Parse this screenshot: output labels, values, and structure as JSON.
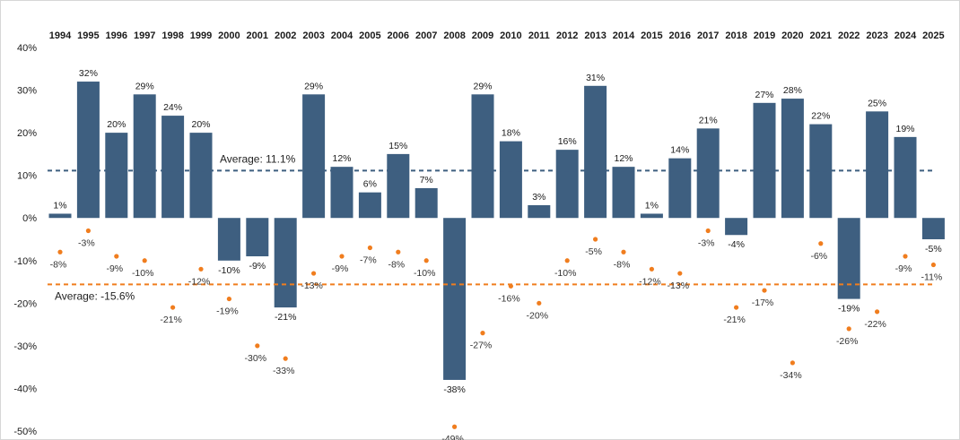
{
  "chart_data": {
    "type": "bar",
    "categories": [
      "1994",
      "1995",
      "1996",
      "1997",
      "1998",
      "1999",
      "2000",
      "2001",
      "2002",
      "2003",
      "2004",
      "2005",
      "2006",
      "2007",
      "2008",
      "2009",
      "2010",
      "2011",
      "2012",
      "2013",
      "2014",
      "2015",
      "2016",
      "2017",
      "2018",
      "2019",
      "2020",
      "2021",
      "2022",
      "2023",
      "2024",
      "2025"
    ],
    "series": [
      {
        "kind": "bar",
        "color": "#3e5f80",
        "values": [
          1,
          32,
          20,
          29,
          24,
          20,
          -10,
          -9,
          -21,
          29,
          12,
          6,
          15,
          7,
          -38,
          29,
          18,
          3,
          16,
          31,
          12,
          1,
          14,
          21,
          -4,
          27,
          28,
          22,
          -19,
          25,
          19,
          -5
        ],
        "labels": [
          "1%",
          "32%",
          "20%",
          "29%",
          "24%",
          "20%",
          "-10%",
          "-9%",
          "-21%",
          "29%",
          "12%",
          "6%",
          "15%",
          "7%",
          "-38%",
          "29%",
          "18%",
          "3%",
          "16%",
          "31%",
          "12%",
          "1%",
          "14%",
          "21%",
          "-4%",
          "27%",
          "28%",
          "22%",
          "-19%",
          "25%",
          "19%",
          "-5%"
        ]
      },
      {
        "kind": "scatter",
        "color": "#f07d1e",
        "values": [
          -8,
          -3,
          -9,
          -10,
          -21,
          -12,
          -19,
          -30,
          -33,
          -13,
          -9,
          -7,
          -8,
          -10,
          -49,
          -27,
          -16,
          -20,
          -10,
          -5,
          -8,
          -12,
          -13,
          -3,
          -21,
          -17,
          -34,
          -6,
          -26,
          -22,
          -9,
          -11
        ],
        "labels": [
          "-8%",
          "-3%",
          "-9%",
          "-10%",
          "-21%",
          "-12%",
          "-19%",
          "-30%",
          "-33%",
          "-13%",
          "-9%",
          "-7%",
          "-8%",
          "-10%",
          "-49%",
          "-27%",
          "-16%",
          "-20%",
          "-10%",
          "-5%",
          "-8%",
          "-12%",
          "-13%",
          "-3%",
          "-21%",
          "-17%",
          "-34%",
          "-6%",
          "-26%",
          "-22%",
          "-9%",
          "-11%"
        ]
      }
    ],
    "reference_lines": [
      {
        "value": 11.1,
        "label": "Average: 11.1%",
        "color": "#3e5f80",
        "style": "dashed"
      },
      {
        "value": -15.6,
        "label": "Average: -15.6%",
        "color": "#f07d1e",
        "style": "dashed"
      }
    ],
    "ylim": [
      -50,
      40
    ],
    "yticks": [
      40,
      30,
      20,
      10,
      0,
      -10,
      -20,
      -30,
      -40,
      -50
    ],
    "ytick_labels": [
      "40%",
      "30%",
      "20%",
      "10%",
      "0%",
      "-10%",
      "-20%",
      "-30%",
      "-40%",
      "-50%"
    ],
    "grid": false,
    "title": "",
    "xlabel": "",
    "ylabel": ""
  }
}
